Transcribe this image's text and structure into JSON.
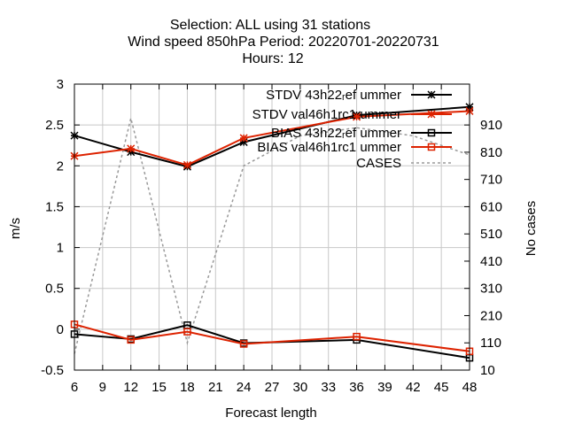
{
  "chart_data": {
    "type": "line",
    "title_lines": [
      "Selection: ALL using    31 stations",
      "Wind speed 850hPa   Period: 20220701-20220731",
      "Hours:  12"
    ],
    "xlabel": "Forecast length",
    "ylabel": "m/s",
    "y2label": "No cases",
    "xlim": [
      6,
      48
    ],
    "ylim": [
      -0.5,
      3
    ],
    "y2lim": [
      10,
      1060
    ],
    "x_ticks": [
      "6",
      "9",
      "12",
      "15",
      "18",
      "21",
      "24",
      "27",
      "30",
      "33",
      "36",
      "39",
      "42",
      "45",
      "48"
    ],
    "y_ticks": [
      "-0.5",
      "0",
      "0.5",
      "1",
      "1.5",
      "2",
      "2.5",
      "3"
    ],
    "y2_ticks": [
      "10",
      "110",
      "210",
      "310",
      "410",
      "510",
      "610",
      "710",
      "810",
      "910"
    ],
    "grid": true,
    "legend_position": "top-right",
    "series": [
      {
        "name": "STDV 43h22_ref_summer",
        "legend_label": "STDV 43h22ᵣef ummer",
        "color": "#000000",
        "marker": "star",
        "axis": "y",
        "x": [
          6,
          12,
          18,
          24,
          36,
          48
        ],
        "y": [
          2.37,
          2.17,
          1.99,
          2.29,
          2.62,
          2.72
        ]
      },
      {
        "name": "STDV val46h1rc1_summer",
        "legend_label": "STDV val46h1rc1 ummer",
        "color": "#dd2200",
        "marker": "star",
        "axis": "y",
        "x": [
          6,
          12,
          18,
          24,
          36,
          48
        ],
        "y": [
          2.12,
          2.21,
          2.01,
          2.34,
          2.6,
          2.67
        ]
      },
      {
        "name": "BIAS 43h22_ref_summer",
        "legend_label": "BIAS 43h22ᵣef ummer",
        "color": "#000000",
        "marker": "square",
        "axis": "y",
        "x": [
          6,
          12,
          18,
          24,
          36,
          48
        ],
        "y": [
          -0.06,
          -0.12,
          0.05,
          -0.17,
          -0.13,
          -0.35
        ]
      },
      {
        "name": "BIAS val46h1rc1_summer",
        "legend_label": "BIAS val46h1rc1 ummer",
        "color": "#dd2200",
        "marker": "square",
        "axis": "y",
        "x": [
          6,
          12,
          18,
          24,
          36,
          48
        ],
        "y": [
          0.06,
          -0.13,
          -0.03,
          -0.18,
          -0.09,
          -0.27
        ]
      },
      {
        "name": "CASES",
        "legend_label": "CASES",
        "color": "#999999",
        "dashed": true,
        "axis": "y2",
        "x": [
          6,
          12,
          18,
          24,
          30,
          36,
          42,
          48
        ],
        "y": [
          70,
          935,
          110,
          760,
          870,
          900,
          870,
          800
        ]
      }
    ]
  }
}
